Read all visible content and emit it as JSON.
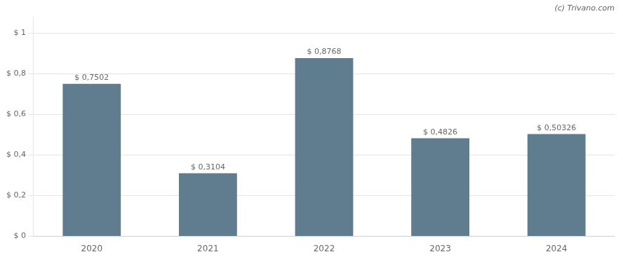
{
  "chart_data": {
    "type": "bar",
    "categories": [
      "2020",
      "2021",
      "2022",
      "2023",
      "2024"
    ],
    "values": [
      0.7502,
      0.3104,
      0.8768,
      0.4826,
      0.50326
    ],
    "value_labels": [
      "$ 0,7502",
      "$ 0,3104",
      "$ 0,8768",
      "$ 0,4826",
      "$ 0,50326"
    ],
    "color": "#5f7d8e",
    "ylim": [
      0,
      1.08
    ],
    "yticks": [
      {
        "value": 0,
        "label": "$ 0"
      },
      {
        "value": 0.2,
        "label": "$ 0,2"
      },
      {
        "value": 0.4,
        "label": "$ 0,4"
      },
      {
        "value": 0.6,
        "label": "$ 0,6"
      },
      {
        "value": 0.8,
        "label": "$ 0,8"
      },
      {
        "value": 1.0,
        "label": "$ 1"
      }
    ],
    "grid": true,
    "annotations": [
      "(c) Trivano.com"
    ]
  }
}
